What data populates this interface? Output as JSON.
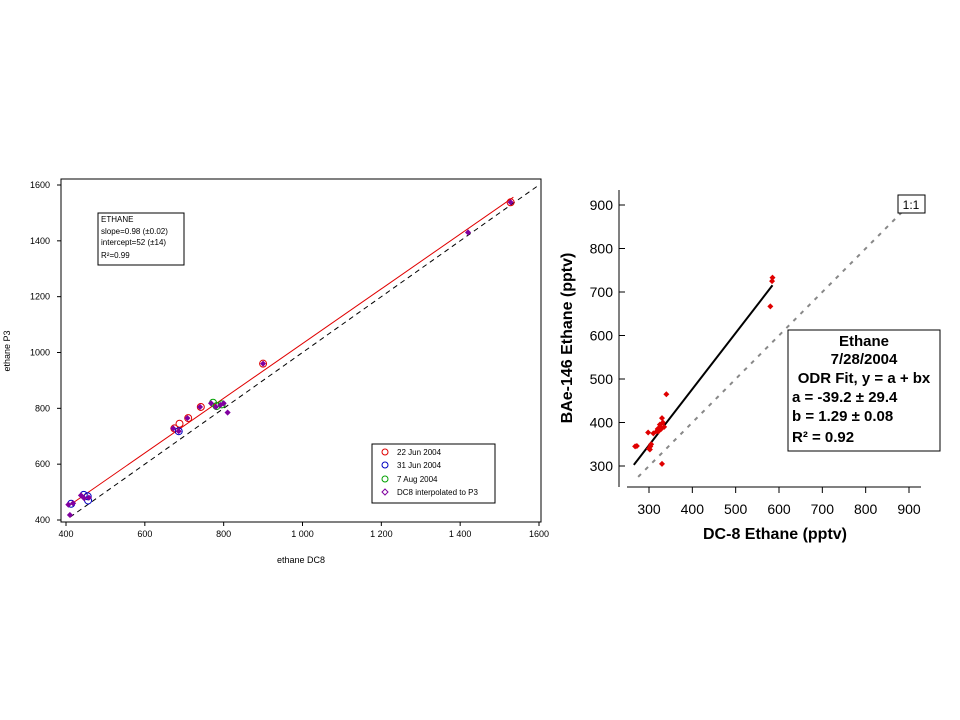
{
  "chart_data": [
    {
      "type": "scatter",
      "xlabel": "ethane DC8",
      "ylabel": "ethane P3",
      "xlim": [
        400,
        1600
      ],
      "ylim": [
        400,
        1600
      ],
      "xticks": [
        "400",
        "600",
        "800",
        "1 000",
        "1 200",
        "1 400",
        "1600"
      ],
      "yticks": [
        "400",
        "600",
        "800",
        "1000",
        "1200",
        "1400",
        "1600"
      ],
      "grid": false,
      "legend_position": "bottom-right",
      "annotation": {
        "lines": [
          "ETHANE",
          "slope=0.98 (±0.02)",
          "intercept=52 (±14)",
          "R²=0.99"
        ]
      },
      "fit_line": {
        "slope": 0.98,
        "intercept": 52,
        "color": "#e00000"
      },
      "reference_line": {
        "slope": 1,
        "intercept": 0,
        "style": "dashed"
      },
      "series": [
        {
          "name": "22 Jun 2004",
          "color": "#e00000",
          "marker": "circle",
          "x": [
            675,
            688,
            710,
            742,
            900,
            1528
          ],
          "y": [
            728,
            745,
            765,
            805,
            960,
            1538
          ]
        },
        {
          "name": "31 Jun 2004",
          "color": "#0000c0",
          "marker": "circle",
          "x": [
            413,
            445,
            455,
            456,
            686
          ],
          "y": [
            458,
            490,
            485,
            470,
            718
          ]
        },
        {
          "name": "7 Aug 2004",
          "color": "#00a000",
          "marker": "circle",
          "x": [
            773,
            782,
            795
          ],
          "y": [
            820,
            808,
            814
          ]
        },
        {
          "name": "DC8 interpolated to P3",
          "color": "#8000a0",
          "marker": "diamond",
          "x": [
            406,
            418,
            438,
            446,
            458,
            672,
            686,
            708,
            740,
            768,
            780,
            792,
            800,
            810,
            900,
            1420,
            1528,
            410
          ],
          "y": [
            455,
            460,
            488,
            478,
            480,
            728,
            718,
            765,
            805,
            818,
            805,
            812,
            818,
            785,
            960,
            1430,
            1538,
            418
          ]
        }
      ]
    },
    {
      "type": "scatter",
      "xlabel": "DC-8 Ethane (pptv)",
      "ylabel": "BAe-146 Ethane (pptv)",
      "xlim": [
        260,
        930
      ],
      "ylim": [
        255,
        925
      ],
      "xticks": [
        "300",
        "400",
        "500",
        "600",
        "700",
        "800",
        "900"
      ],
      "yticks": [
        "300",
        "400",
        "500",
        "600",
        "700",
        "800",
        "900"
      ],
      "reference_label": "1:1",
      "annotation": {
        "lines": [
          "Ethane",
          "7/28/2004",
          "ODR Fit, y = a + bx",
          "a = -39.2 ± 29.4",
          "b = 1.29 ± 0.08",
          "R² = 0.92"
        ]
      },
      "fit_line": {
        "a": -39.2,
        "b": 1.29,
        "x_range": [
          265,
          585
        ]
      },
      "series": [
        {
          "color": "#e00000",
          "marker": "point",
          "x": [
            268,
            272,
            298,
            300,
            302,
            303,
            305,
            310,
            318,
            320,
            322,
            325,
            326,
            328,
            330,
            332,
            335,
            340,
            580,
            584,
            585,
            330
          ],
          "y": [
            345,
            346,
            377,
            340,
            338,
            345,
            350,
            375,
            380,
            385,
            380,
            395,
            390,
            385,
            410,
            400,
            390,
            465,
            667,
            725,
            733,
            305
          ]
        }
      ]
    }
  ]
}
